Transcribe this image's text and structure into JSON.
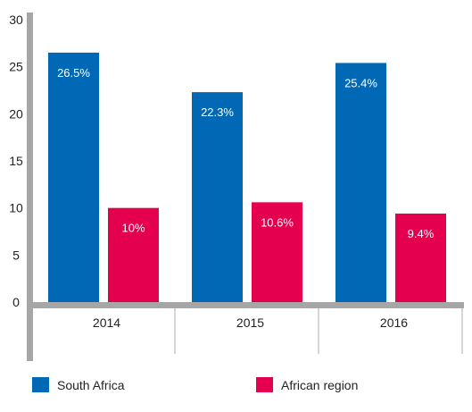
{
  "chart_data": {
    "type": "bar",
    "categories": [
      "2014",
      "2015",
      "2016"
    ],
    "series": [
      {
        "name": "South Africa",
        "values": [
          26.5,
          22.3,
          25.4
        ],
        "labels": [
          "26.5%",
          "22.3%",
          "25.4%"
        ],
        "color": "#0068b4"
      },
      {
        "name": "African region",
        "values": [
          10,
          10.6,
          9.4
        ],
        "labels": [
          "10%",
          "10.6%",
          "9.4%"
        ],
        "color": "#e4004f"
      }
    ],
    "y_ticks": [
      "0",
      "5",
      "10",
      "15",
      "20",
      "25",
      "30"
    ],
    "ylim": [
      0,
      30
    ],
    "grid": false,
    "legend_position": "bottom",
    "axis_color": "#a6a6a6",
    "label_color": "#ffffff"
  }
}
